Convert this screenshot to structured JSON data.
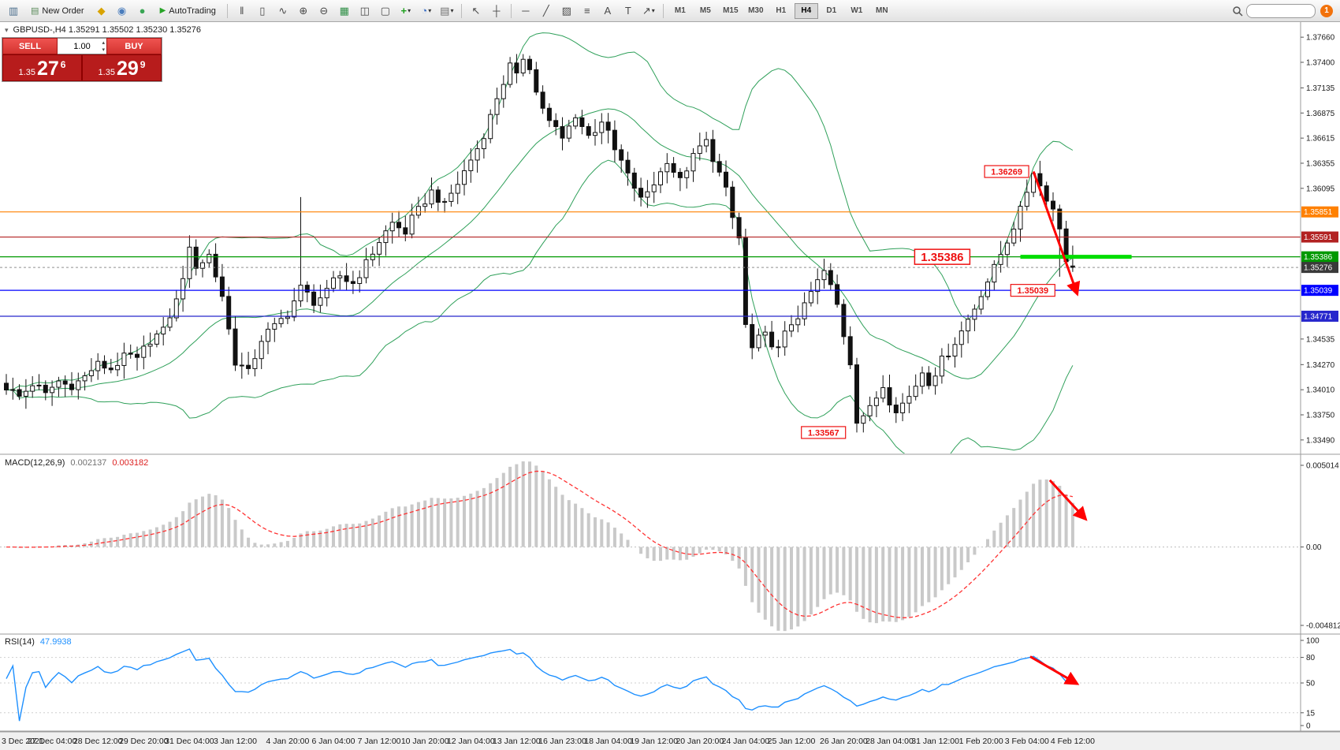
{
  "toolbar": {
    "left_icons": [
      {
        "name": "new-chart-icon",
        "glyph": "▥",
        "color": "#4a6d8c"
      }
    ],
    "new_order": {
      "label": "New Order",
      "icon_glyph": "▤",
      "icon_color": "#5a8a5a"
    },
    "expert_icons": [
      {
        "name": "metaeditor-icon",
        "glyph": "◆",
        "color": "#d9a300"
      },
      {
        "name": "mql5-community-icon",
        "glyph": "◉",
        "color": "#4a7dbd"
      },
      {
        "name": "market-icon",
        "glyph": "●",
        "color": "#3aa655"
      }
    ],
    "autotrading": {
      "label": "AutoTrading",
      "icon_glyph": "▶",
      "icon_color": "#27a427"
    },
    "chart_type_icons": [
      {
        "name": "bar-chart-icon",
        "glyph": "‖"
      },
      {
        "name": "candlestick-chart-icon",
        "glyph": "▯"
      },
      {
        "name": "line-chart-icon",
        "glyph": "∿"
      }
    ],
    "zoom_icons": [
      {
        "name": "zoom-in-icon",
        "glyph": "⊕"
      },
      {
        "name": "zoom-out-icon",
        "glyph": "⊖"
      }
    ],
    "window_icons": [
      {
        "name": "tile-windows-icon",
        "glyph": "▦",
        "color": "#2f8f46"
      },
      {
        "name": "arrange-windows-icon",
        "glyph": "◫"
      },
      {
        "name": "dock-window-icon",
        "glyph": "▢"
      }
    ],
    "insert_icons": [
      {
        "name": "add-indicator-icon",
        "glyph": "+",
        "color": "#1fa11f",
        "dropdown": true
      },
      {
        "name": "period-icon",
        "glyph": "◔",
        "color": "#3a6fc4",
        "dropdown": true
      },
      {
        "name": "template-icon",
        "glyph": "▤",
        "color": "#6f6f6f",
        "dropdown": true
      }
    ],
    "cursor_icons": [
      {
        "name": "cursor-icon",
        "glyph": "↖"
      },
      {
        "name": "crosshair-icon",
        "glyph": "┼"
      }
    ],
    "draw_icons": [
      {
        "name": "horizontal-line-icon",
        "glyph": "─"
      },
      {
        "name": "trendline-icon",
        "glyph": "╱"
      },
      {
        "name": "equidistant-channel-icon",
        "glyph": "▨"
      },
      {
        "name": "fibonacci-icon",
        "glyph": "≡"
      },
      {
        "name": "text-icon",
        "glyph": "A"
      },
      {
        "name": "label-icon",
        "glyph": "T"
      },
      {
        "name": "arrows-icon",
        "glyph": "↗",
        "dropdown": true
      }
    ],
    "timeframes": [
      "M1",
      "M5",
      "M15",
      "M30",
      "H1",
      "H4",
      "D1",
      "W1",
      "MN"
    ],
    "active_timeframe": "H4",
    "search_value": "",
    "notification_count": "1"
  },
  "symbol_bar": {
    "text": "GBPUSD-,H4 1.35291 1.35502 1.35230 1.35276"
  },
  "trade_panel": {
    "sell_label": "SELL",
    "buy_label": "BUY",
    "volume": "1.00",
    "sell_price_prefix": "1.35",
    "sell_price_big": "27",
    "sell_price_sup": "6",
    "buy_price_prefix": "1.35",
    "buy_price_big": "29",
    "buy_price_sup": "9"
  },
  "chart_data": {
    "type": "candlestick",
    "symbol": "GBPUSD",
    "timeframe": "H4",
    "price_range": [
      1.3335,
      1.378
    ],
    "price_scale_ticks": [
      "1.37660",
      "1.37400",
      "1.37135",
      "1.36875",
      "1.36615",
      "1.36355",
      "1.36095",
      "1.34535",
      "1.34270",
      "1.34010",
      "1.33750",
      "1.33490"
    ],
    "level_lines": [
      {
        "price": 1.35851,
        "color": "#ff8000",
        "label": "1.35851"
      },
      {
        "price": 1.35591,
        "color": "#b22222",
        "label": "1.35591"
      },
      {
        "price": 1.35386,
        "color": "#009900",
        "label": "1.35386"
      },
      {
        "price": 1.35039,
        "color": "#0000ff",
        "label": "1.35039"
      },
      {
        "price": 1.34771,
        "color": "#2727cc",
        "label": "1.34771"
      }
    ],
    "current_price": {
      "value": 1.35276,
      "label": "1.35276",
      "tag_color": "#3a3a3a"
    },
    "green_segment": {
      "price": 1.35386,
      "i1": 155,
      "i2": 172,
      "color": "#00dd00"
    },
    "candles": {
      "count": 164,
      "keypoints": [
        [
          0,
          1.3402
        ],
        [
          2,
          1.3394
        ],
        [
          4,
          1.3406
        ],
        [
          6,
          1.3397
        ],
        [
          8,
          1.341
        ],
        [
          10,
          1.3403
        ],
        [
          12,
          1.3415
        ],
        [
          14,
          1.3429
        ],
        [
          16,
          1.3422
        ],
        [
          18,
          1.3437
        ],
        [
          20,
          1.3433
        ],
        [
          22,
          1.345
        ],
        [
          24,
          1.3464
        ],
        [
          26,
          1.3494
        ],
        [
          28,
          1.3547
        ],
        [
          29,
          1.3528
        ],
        [
          31,
          1.3541
        ],
        [
          33,
          1.3498
        ],
        [
          35,
          1.3428
        ],
        [
          37,
          1.3421
        ],
        [
          39,
          1.3452
        ],
        [
          41,
          1.3468
        ],
        [
          43,
          1.3478
        ],
        [
          45,
          1.3508
        ],
        [
          47,
          1.349
        ],
        [
          49,
          1.3504
        ],
        [
          51,
          1.3519
        ],
        [
          53,
          1.3511
        ],
        [
          55,
          1.3534
        ],
        [
          57,
          1.3554
        ],
        [
          59,
          1.3574
        ],
        [
          61,
          1.3563
        ],
        [
          63,
          1.3589
        ],
        [
          65,
          1.3607
        ],
        [
          67,
          1.3594
        ],
        [
          69,
          1.3614
        ],
        [
          71,
          1.3639
        ],
        [
          73,
          1.3663
        ],
        [
          75,
          1.3703
        ],
        [
          77,
          1.3738
        ],
        [
          78,
          1.3727
        ],
        [
          79,
          1.3744
        ],
        [
          80,
          1.3734
        ],
        [
          81,
          1.3709
        ],
        [
          83,
          1.3679
        ],
        [
          85,
          1.3661
        ],
        [
          87,
          1.3684
        ],
        [
          89,
          1.3664
        ],
        [
          91,
          1.3679
        ],
        [
          93,
          1.3649
        ],
        [
          95,
          1.3624
        ],
        [
          97,
          1.3599
        ],
        [
          99,
          1.3614
        ],
        [
          101,
          1.3637
        ],
        [
          103,
          1.3619
        ],
        [
          105,
          1.3644
        ],
        [
          107,
          1.3659
        ],
        [
          108,
          1.3639
        ],
        [
          110,
          1.3609
        ],
        [
          111,
          1.3579
        ],
        [
          112,
          1.3558
        ],
        [
          113,
          1.3468
        ],
        [
          114,
          1.3444
        ],
        [
          116,
          1.3459
        ],
        [
          118,
          1.3444
        ],
        [
          120,
          1.3469
        ],
        [
          122,
          1.3489
        ],
        [
          124,
          1.3514
        ],
        [
          125,
          1.3524
        ],
        [
          127,
          1.3489
        ],
        [
          129,
          1.3428
        ],
        [
          130,
          1.3368
        ],
        [
          132,
          1.3383
        ],
        [
          134,
          1.3404
        ],
        [
          136,
          1.3379
        ],
        [
          138,
          1.3394
        ],
        [
          140,
          1.3419
        ],
        [
          141,
          1.3407
        ],
        [
          143,
          1.3434
        ],
        [
          145,
          1.3449
        ],
        [
          147,
          1.3474
        ],
        [
          149,
          1.3499
        ],
        [
          151,
          1.3529
        ],
        [
          153,
          1.3554
        ],
        [
          155,
          1.3589
        ],
        [
          157,
          1.3626
        ],
        [
          158,
          1.3612
        ],
        [
          159,
          1.3598
        ],
        [
          160,
          1.3588
        ],
        [
          161,
          1.3568
        ],
        [
          162,
          1.3535
        ],
        [
          163,
          1.3528
        ]
      ],
      "wick_overrides": {
        "45": {
          "high": 1.36005
        },
        "77": {
          "high": 1.37455
        },
        "79": {
          "high": 1.37485
        },
        "130": {
          "low": 1.33567
        },
        "157": {
          "high": 1.36269
        },
        "161": {
          "low": 1.3518
        }
      },
      "last_candle": {
        "open": 1.35291,
        "high": 1.35502,
        "low": 1.3523,
        "close": 1.35276
      }
    },
    "bollinger": {
      "period": 20,
      "deviation": 2,
      "color": "#2fa05a"
    },
    "macd": {
      "label": "MACD(12,26,9)",
      "value_main": "0.002137",
      "value_signal": "0.003182",
      "scale_labels": [
        "0.005014",
        "0.00",
        "-0.004812"
      ],
      "scale_values": [
        0.005014,
        0,
        -0.004812
      ],
      "histogram_color": "#c9c9c9",
      "signal_color": "#ff3333"
    },
    "rsi": {
      "label": "RSI(14)",
      "value": "47.9938",
      "scale_labels": [
        "100",
        "80",
        "50",
        "15",
        "0"
      ],
      "scale_values": [
        100,
        80,
        50,
        15,
        0
      ],
      "levels": [
        80,
        50,
        15
      ],
      "color": "#1e90ff"
    },
    "annotations": {
      "callouts": [
        {
          "text": "1.36269",
          "i": 157,
          "price": 1.36269
        },
        {
          "text": "1.35386",
          "i": 148,
          "price": 1.35386,
          "big": true
        },
        {
          "text": "1.35039",
          "i": 161,
          "price": 1.35039
        },
        {
          "text": "1.33567",
          "i": 129,
          "price": 1.33567
        }
      ],
      "arrows": [
        {
          "panel": "main",
          "i1": 157,
          "v1": 1.36269,
          "i2": 163.7,
          "v2": 1.35
        },
        {
          "panel": "macd",
          "i1": 159.5,
          "v1": 0.0041,
          "i2": 165,
          "v2": 0.0017
        },
        {
          "panel": "rsi",
          "i1": 156.5,
          "v1": 81,
          "i2": 163.7,
          "v2": 49
        }
      ]
    },
    "time_axis": {
      "labels": [
        "3 Dec 2021",
        "27 Dec 04:00",
        "28 Dec 12:00",
        "29 Dec 20:00",
        "31 Dec 04:00",
        "3 Jan 12:00",
        "4 Jan 20:00",
        "6 Jan 04:00",
        "7 Jan 12:00",
        "10 Jan 20:00",
        "12 Jan 04:00",
        "13 Jan 12:00",
        "16 Jan 23:00",
        "18 Jan 04:00",
        "19 Jan 12:00",
        "20 Jan 20:00",
        "24 Jan 04:00",
        "25 Jan 12:00",
        "26 Jan 20:00",
        "28 Jan 04:00",
        "31 Jan 12:00",
        "1 Feb 20:00",
        "3 Feb 04:00",
        "4 Feb 12:00"
      ],
      "indices": [
        0,
        7,
        14,
        21,
        28,
        35,
        43,
        50,
        57,
        64,
        71,
        78,
        85,
        92,
        99,
        106,
        113,
        120,
        128,
        135,
        142,
        149,
        156,
        163
      ]
    }
  }
}
